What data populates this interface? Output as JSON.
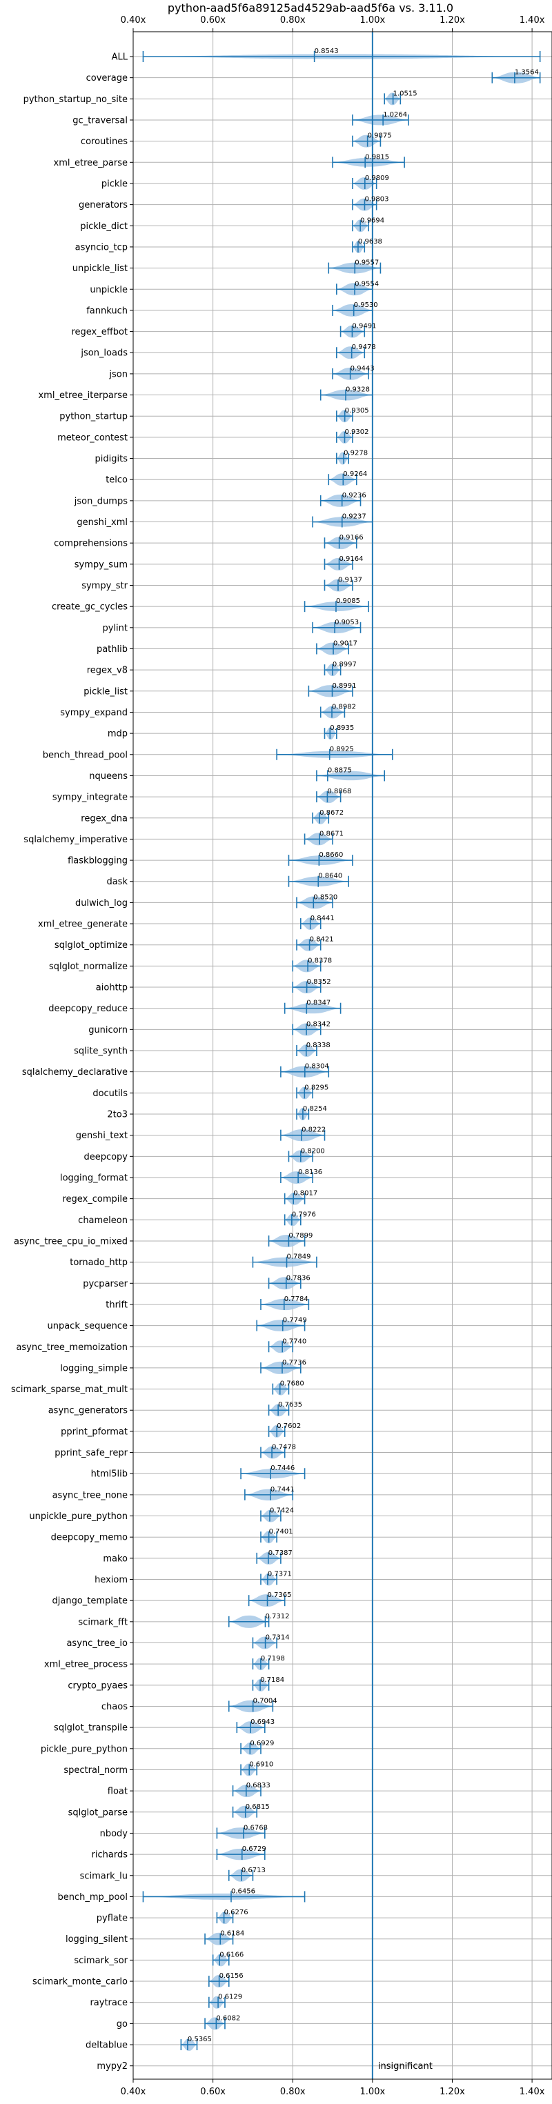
{
  "chart_data": {
    "type": "violin",
    "title": "python-aad5f6a89125ad4529ab-aad5f6a vs. 3.11.0",
    "xlabel": "",
    "ylabel": "",
    "xlim": [
      0.4,
      1.45
    ],
    "xticks": [
      0.4,
      0.6,
      0.8,
      1.0,
      1.2,
      1.4
    ],
    "xtick_labels": [
      "0.40x",
      "0.60x",
      "0.80x",
      "1.00x",
      "1.20x",
      "1.40x"
    ],
    "xtick_labels_position": "top-and-bottom",
    "grid": true,
    "reference_line": 1.0,
    "colors": {
      "violin": "#a6c8e6",
      "line": "#1f77b4",
      "grid": "#b0b0b0"
    },
    "annotation": "insignificant",
    "benchmarks": [
      {
        "name": "ALL",
        "value": 0.8543,
        "min": 0.425,
        "max": 1.42,
        "label": "0.8543"
      },
      {
        "name": "coverage",
        "value": 1.3564,
        "min": 1.3,
        "max": 1.42,
        "label": "1.3564"
      },
      {
        "name": "python_startup_no_site",
        "value": 1.0515,
        "min": 1.03,
        "max": 1.07,
        "label": "1.0515"
      },
      {
        "name": "gc_traversal",
        "value": 1.0264,
        "min": 0.95,
        "max": 1.09,
        "label": "1.0264"
      },
      {
        "name": "coroutines",
        "value": 0.9875,
        "min": 0.95,
        "max": 1.02,
        "label": "0.9875"
      },
      {
        "name": "xml_etree_parse",
        "value": 0.9815,
        "min": 0.9,
        "max": 1.08,
        "label": "0.9815"
      },
      {
        "name": "pickle",
        "value": 0.9809,
        "min": 0.95,
        "max": 1.01,
        "label": "0.9809"
      },
      {
        "name": "generators",
        "value": 0.9803,
        "min": 0.95,
        "max": 1.01,
        "label": "0.9803"
      },
      {
        "name": "pickle_dict",
        "value": 0.9694,
        "min": 0.95,
        "max": 0.99,
        "label": "0.9694"
      },
      {
        "name": "asyncio_tcp",
        "value": 0.9638,
        "min": 0.95,
        "max": 0.98,
        "label": "0.9638"
      },
      {
        "name": "unpickle_list",
        "value": 0.9557,
        "min": 0.89,
        "max": 1.02,
        "label": "0.9557"
      },
      {
        "name": "unpickle",
        "value": 0.9554,
        "min": 0.91,
        "max": 1.0,
        "label": "0.9554"
      },
      {
        "name": "fannkuch",
        "value": 0.953,
        "min": 0.9,
        "max": 1.0,
        "label": "0.9530"
      },
      {
        "name": "regex_effbot",
        "value": 0.9491,
        "min": 0.92,
        "max": 0.98,
        "label": "0.9491"
      },
      {
        "name": "json_loads",
        "value": 0.9478,
        "min": 0.91,
        "max": 0.98,
        "label": "0.9478"
      },
      {
        "name": "json",
        "value": 0.9443,
        "min": 0.9,
        "max": 0.99,
        "label": "0.9443"
      },
      {
        "name": "xml_etree_iterparse",
        "value": 0.9328,
        "min": 0.87,
        "max": 1.0,
        "label": "0.9328"
      },
      {
        "name": "python_startup",
        "value": 0.9305,
        "min": 0.91,
        "max": 0.95,
        "label": "0.9305"
      },
      {
        "name": "meteor_contest",
        "value": 0.9302,
        "min": 0.91,
        "max": 0.95,
        "label": "0.9302"
      },
      {
        "name": "pidigits",
        "value": 0.9278,
        "min": 0.91,
        "max": 0.94,
        "label": "0.9278"
      },
      {
        "name": "telco",
        "value": 0.9264,
        "min": 0.89,
        "max": 0.96,
        "label": "0.9264"
      },
      {
        "name": "json_dumps",
        "value": 0.9236,
        "min": 0.87,
        "max": 0.97,
        "label": "0.9236"
      },
      {
        "name": "genshi_xml",
        "value": 0.9237,
        "min": 0.85,
        "max": 1.0,
        "label": "0.9237"
      },
      {
        "name": "comprehensions",
        "value": 0.9166,
        "min": 0.88,
        "max": 0.96,
        "label": "0.9166"
      },
      {
        "name": "sympy_sum",
        "value": 0.9164,
        "min": 0.88,
        "max": 0.95,
        "label": "0.9164"
      },
      {
        "name": "sympy_str",
        "value": 0.9137,
        "min": 0.88,
        "max": 0.95,
        "label": "0.9137"
      },
      {
        "name": "create_gc_cycles",
        "value": 0.9085,
        "min": 0.83,
        "max": 0.99,
        "label": "0.9085"
      },
      {
        "name": "pylint",
        "value": 0.9053,
        "min": 0.85,
        "max": 0.97,
        "label": "0.9053"
      },
      {
        "name": "pathlib",
        "value": 0.9017,
        "min": 0.86,
        "max": 0.94,
        "label": "0.9017"
      },
      {
        "name": "regex_v8",
        "value": 0.8997,
        "min": 0.88,
        "max": 0.92,
        "label": "0.8997"
      },
      {
        "name": "pickle_list",
        "value": 0.8991,
        "min": 0.84,
        "max": 0.95,
        "label": "0.8991"
      },
      {
        "name": "sympy_expand",
        "value": 0.8982,
        "min": 0.87,
        "max": 0.93,
        "label": "0.8982"
      },
      {
        "name": "mdp",
        "value": 0.8935,
        "min": 0.88,
        "max": 0.91,
        "label": "0.8935"
      },
      {
        "name": "bench_thread_pool",
        "value": 0.8925,
        "min": 0.76,
        "max": 1.05,
        "label": "0.8925"
      },
      {
        "name": "nqueens",
        "value": 0.8875,
        "min": 0.86,
        "max": 1.03,
        "label": "0.8875"
      },
      {
        "name": "sympy_integrate",
        "value": 0.8868,
        "min": 0.86,
        "max": 0.92,
        "label": "0.8868"
      },
      {
        "name": "regex_dna",
        "value": 0.8672,
        "min": 0.85,
        "max": 0.89,
        "label": "0.8672"
      },
      {
        "name": "sqlalchemy_imperative",
        "value": 0.8671,
        "min": 0.83,
        "max": 0.9,
        "label": "0.8671"
      },
      {
        "name": "flaskblogging",
        "value": 0.866,
        "min": 0.79,
        "max": 0.95,
        "label": "0.8660"
      },
      {
        "name": "dask",
        "value": 0.864,
        "min": 0.79,
        "max": 0.94,
        "label": "0.8640"
      },
      {
        "name": "dulwich_log",
        "value": 0.852,
        "min": 0.81,
        "max": 0.9,
        "label": "0.8520"
      },
      {
        "name": "xml_etree_generate",
        "value": 0.8441,
        "min": 0.82,
        "max": 0.87,
        "label": "0.8441"
      },
      {
        "name": "sqlglot_optimize",
        "value": 0.8421,
        "min": 0.81,
        "max": 0.87,
        "label": "0.8421"
      },
      {
        "name": "sqlglot_normalize",
        "value": 0.8378,
        "min": 0.8,
        "max": 0.87,
        "label": "0.8378"
      },
      {
        "name": "aiohttp",
        "value": 0.8352,
        "min": 0.8,
        "max": 0.87,
        "label": "0.8352"
      },
      {
        "name": "deepcopy_reduce",
        "value": 0.8347,
        "min": 0.78,
        "max": 0.92,
        "label": "0.8347"
      },
      {
        "name": "gunicorn",
        "value": 0.8342,
        "min": 0.8,
        "max": 0.87,
        "label": "0.8342"
      },
      {
        "name": "sqlite_synth",
        "value": 0.8338,
        "min": 0.81,
        "max": 0.86,
        "label": "0.8338"
      },
      {
        "name": "sqlalchemy_declarative",
        "value": 0.8304,
        "min": 0.77,
        "max": 0.89,
        "label": "0.8304"
      },
      {
        "name": "docutils",
        "value": 0.8295,
        "min": 0.81,
        "max": 0.85,
        "label": "0.8295"
      },
      {
        "name": "2to3",
        "value": 0.8254,
        "min": 0.81,
        "max": 0.84,
        "label": "0.8254"
      },
      {
        "name": "genshi_text",
        "value": 0.8222,
        "min": 0.77,
        "max": 0.88,
        "label": "0.8222"
      },
      {
        "name": "deepcopy",
        "value": 0.82,
        "min": 0.79,
        "max": 0.85,
        "label": "0.8200"
      },
      {
        "name": "logging_format",
        "value": 0.8136,
        "min": 0.77,
        "max": 0.85,
        "label": "0.8136"
      },
      {
        "name": "regex_compile",
        "value": 0.8017,
        "min": 0.78,
        "max": 0.83,
        "label": "0.8017"
      },
      {
        "name": "chameleon",
        "value": 0.7976,
        "min": 0.78,
        "max": 0.82,
        "label": "0.7976"
      },
      {
        "name": "async_tree_cpu_io_mixed",
        "value": 0.7899,
        "min": 0.74,
        "max": 0.83,
        "label": "0.7899"
      },
      {
        "name": "tornado_http",
        "value": 0.7849,
        "min": 0.7,
        "max": 0.86,
        "label": "0.7849"
      },
      {
        "name": "pycparser",
        "value": 0.7836,
        "min": 0.74,
        "max": 0.82,
        "label": "0.7836"
      },
      {
        "name": "thrift",
        "value": 0.7784,
        "min": 0.72,
        "max": 0.84,
        "label": "0.7784"
      },
      {
        "name": "unpack_sequence",
        "value": 0.7749,
        "min": 0.71,
        "max": 0.83,
        "label": "0.7749"
      },
      {
        "name": "async_tree_memoization",
        "value": 0.774,
        "min": 0.74,
        "max": 0.8,
        "label": "0.7740"
      },
      {
        "name": "logging_simple",
        "value": 0.7736,
        "min": 0.72,
        "max": 0.82,
        "label": "0.7736"
      },
      {
        "name": "scimark_sparse_mat_mult",
        "value": 0.768,
        "min": 0.75,
        "max": 0.79,
        "label": "0.7680"
      },
      {
        "name": "async_generators",
        "value": 0.7635,
        "min": 0.74,
        "max": 0.79,
        "label": "0.7635"
      },
      {
        "name": "pprint_pformat",
        "value": 0.7602,
        "min": 0.74,
        "max": 0.78,
        "label": "0.7602"
      },
      {
        "name": "pprint_safe_repr",
        "value": 0.7478,
        "min": 0.72,
        "max": 0.78,
        "label": "0.7478"
      },
      {
        "name": "html5lib",
        "value": 0.7446,
        "min": 0.67,
        "max": 0.83,
        "label": "0.7446"
      },
      {
        "name": "async_tree_none",
        "value": 0.7441,
        "min": 0.68,
        "max": 0.8,
        "label": "0.7441"
      },
      {
        "name": "unpickle_pure_python",
        "value": 0.7424,
        "min": 0.72,
        "max": 0.77,
        "label": "0.7424"
      },
      {
        "name": "deepcopy_memo",
        "value": 0.7401,
        "min": 0.72,
        "max": 0.76,
        "label": "0.7401"
      },
      {
        "name": "mako",
        "value": 0.7387,
        "min": 0.71,
        "max": 0.77,
        "label": "0.7387"
      },
      {
        "name": "hexiom",
        "value": 0.7371,
        "min": 0.72,
        "max": 0.76,
        "label": "0.7371"
      },
      {
        "name": "django_template",
        "value": 0.7365,
        "min": 0.69,
        "max": 0.78,
        "label": "0.7365"
      },
      {
        "name": "scimark_fft",
        "value": 0.7312,
        "min": 0.64,
        "max": 0.74,
        "label": "0.7312"
      },
      {
        "name": "async_tree_io",
        "value": 0.7314,
        "min": 0.7,
        "max": 0.76,
        "label": "0.7314"
      },
      {
        "name": "xml_etree_process",
        "value": 0.7198,
        "min": 0.7,
        "max": 0.74,
        "label": "0.7198"
      },
      {
        "name": "crypto_pyaes",
        "value": 0.7184,
        "min": 0.7,
        "max": 0.74,
        "label": "0.7184"
      },
      {
        "name": "chaos",
        "value": 0.7004,
        "min": 0.64,
        "max": 0.75,
        "label": "0.7004"
      },
      {
        "name": "sqlglot_transpile",
        "value": 0.6943,
        "min": 0.66,
        "max": 0.73,
        "label": "0.6943"
      },
      {
        "name": "pickle_pure_python",
        "value": 0.6929,
        "min": 0.67,
        "max": 0.72,
        "label": "0.6929"
      },
      {
        "name": "spectral_norm",
        "value": 0.691,
        "min": 0.67,
        "max": 0.71,
        "label": "0.6910"
      },
      {
        "name": "float",
        "value": 0.6833,
        "min": 0.65,
        "max": 0.72,
        "label": "0.6833"
      },
      {
        "name": "sqlglot_parse",
        "value": 0.6815,
        "min": 0.65,
        "max": 0.71,
        "label": "0.6815"
      },
      {
        "name": "nbody",
        "value": 0.6768,
        "min": 0.61,
        "max": 0.73,
        "label": "0.6768"
      },
      {
        "name": "richards",
        "value": 0.6729,
        "min": 0.61,
        "max": 0.73,
        "label": "0.6729"
      },
      {
        "name": "scimark_lu",
        "value": 0.6713,
        "min": 0.64,
        "max": 0.7,
        "label": "0.6713"
      },
      {
        "name": "bench_mp_pool",
        "value": 0.6456,
        "min": 0.425,
        "max": 0.83,
        "label": "0.6456"
      },
      {
        "name": "pyflate",
        "value": 0.6276,
        "min": 0.61,
        "max": 0.65,
        "label": "0.6276"
      },
      {
        "name": "logging_silent",
        "value": 0.6184,
        "min": 0.58,
        "max": 0.65,
        "label": "0.6184"
      },
      {
        "name": "scimark_sor",
        "value": 0.6166,
        "min": 0.6,
        "max": 0.64,
        "label": "0.6166"
      },
      {
        "name": "scimark_monte_carlo",
        "value": 0.6156,
        "min": 0.59,
        "max": 0.64,
        "label": "0.6156"
      },
      {
        "name": "raytrace",
        "value": 0.6129,
        "min": 0.59,
        "max": 0.63,
        "label": "0.6129"
      },
      {
        "name": "go",
        "value": 0.6082,
        "min": 0.58,
        "max": 0.63,
        "label": "0.6082"
      },
      {
        "name": "deltablue",
        "value": 0.5365,
        "min": 0.52,
        "max": 0.56,
        "label": "0.5365"
      },
      {
        "name": "mypy2",
        "value": null,
        "min": null,
        "max": null,
        "label": "",
        "note": "insignificant"
      }
    ]
  }
}
